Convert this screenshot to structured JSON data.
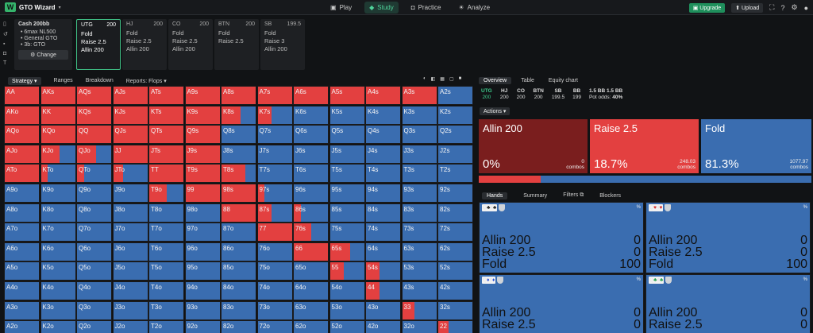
{
  "app": {
    "title": "GTO Wizard"
  },
  "nav": {
    "tabs": [
      {
        "label": "Play"
      },
      {
        "label": "Study"
      },
      {
        "label": "Practice"
      },
      {
        "label": "Analyze"
      }
    ],
    "upgrade": "Upgrade",
    "upload": "Upload"
  },
  "config": {
    "header": "Cash  200bb",
    "items": [
      "6max NL500",
      "General GTO",
      "3b: GTO"
    ],
    "change": "Change"
  },
  "positions": [
    {
      "name": "UTG",
      "stack": "200",
      "actions": [
        "Fold",
        "Raise 2.5",
        "Allin 200"
      ]
    },
    {
      "name": "HJ",
      "stack": "200",
      "actions": [
        "Fold",
        "Raise 2.5",
        "Allin 200"
      ]
    },
    {
      "name": "CO",
      "stack": "200",
      "actions": [
        "Fold",
        "Raise 2.5",
        "Allin 200"
      ]
    },
    {
      "name": "BTN",
      "stack": "200",
      "actions": [
        "Fold",
        "Raise 2.5"
      ]
    },
    {
      "name": "SB",
      "stack": "199.5",
      "actions": [
        "Fold",
        "Raise 3",
        "Allin 200"
      ]
    }
  ],
  "lefttabs": [
    "Strategy",
    "Ranges",
    "Breakdown",
    "Reports: Flops"
  ],
  "matrix": {
    "ranks": [
      "A",
      "K",
      "Q",
      "J",
      "T",
      "9",
      "8",
      "7",
      "6",
      "5",
      "4",
      "3",
      "2"
    ],
    "raise_freq": [
      [
        1,
        1,
        1,
        1,
        1,
        1,
        1,
        1,
        1,
        1,
        1,
        1,
        0
      ],
      [
        1,
        1,
        1,
        1,
        1,
        1,
        0.55,
        0.4,
        0,
        0,
        0,
        0,
        0
      ],
      [
        1,
        1,
        1,
        1,
        1,
        1,
        0,
        0,
        0,
        0,
        0,
        0,
        0
      ],
      [
        1,
        0.55,
        0.55,
        1,
        1,
        1,
        0,
        0,
        0,
        0,
        0,
        0,
        0
      ],
      [
        1,
        0.2,
        0.2,
        0.3,
        1,
        1,
        0.7,
        0,
        0,
        0,
        0,
        0,
        0
      ],
      [
        0,
        0,
        0,
        0,
        0.5,
        1,
        1,
        0.2,
        0,
        0,
        0,
        0,
        0
      ],
      [
        0,
        0,
        0,
        0,
        0,
        0,
        1,
        0.4,
        0.2,
        0,
        0,
        0,
        0
      ],
      [
        0,
        0,
        0,
        0,
        0,
        0,
        0,
        1,
        0.5,
        0,
        0,
        0,
        0
      ],
      [
        0,
        0,
        0,
        0,
        0,
        0,
        0,
        0,
        1,
        0.6,
        0,
        0,
        0
      ],
      [
        0,
        0,
        0,
        0,
        0,
        0,
        0,
        0,
        0,
        0.4,
        0.4,
        0,
        0
      ],
      [
        0,
        0,
        0,
        0,
        0,
        0,
        0,
        0,
        0,
        0,
        0.4,
        0,
        0
      ],
      [
        0,
        0,
        0,
        0,
        0,
        0,
        0,
        0,
        0,
        0,
        0,
        0.35,
        0
      ],
      [
        0,
        0,
        0,
        0,
        0,
        0,
        0,
        0,
        0,
        0,
        0,
        0,
        0.3
      ]
    ]
  },
  "righttabs": [
    "Overview",
    "Table",
    "Equity chart"
  ],
  "seats": [
    {
      "name": "UTG",
      "stack": "200"
    },
    {
      "name": "HJ",
      "stack": "200"
    },
    {
      "name": "CO",
      "stack": "200"
    },
    {
      "name": "BTN",
      "stack": "200"
    },
    {
      "name": "SB",
      "stack": "199.5"
    },
    {
      "name": "BB",
      "stack": "199"
    }
  ],
  "pot": {
    "line1": "1.5 BB  1.5 BB",
    "label": "Pot odds:",
    "odds": "40%"
  },
  "actions_label": "Actions",
  "actionbox": [
    {
      "name": "Allin 200",
      "pct": "0%",
      "combos": "0",
      "combos_label": "combos",
      "color": "#7a1e1e"
    },
    {
      "name": "Raise 2.5",
      "pct": "18.7%",
      "combos": "248.03",
      "combos_label": "combos",
      "color": "#e34040"
    },
    {
      "name": "Fold",
      "pct": "81.3%",
      "combos": "1077.97",
      "combos_label": "combos",
      "color": "#3a6db0"
    }
  ],
  "handtabs": [
    "Hands",
    "Summary",
    "Filters",
    "Blockers"
  ],
  "handcards": [
    {
      "c1": "Q",
      "s1": "♣",
      "k1": "k",
      "c2": "4",
      "s2": "♣",
      "k2": "k",
      "rows": [
        [
          "Allin 200",
          "0"
        ],
        [
          "Raise 2.5",
          "0"
        ],
        [
          "Fold",
          "100"
        ]
      ]
    },
    {
      "c1": "Q",
      "s1": "♥",
      "k1": "r",
      "c2": "4",
      "s2": "♥",
      "k2": "r",
      "rows": [
        [
          "Allin 200",
          "0"
        ],
        [
          "Raise 2.5",
          "0"
        ],
        [
          "Fold",
          "100"
        ]
      ]
    },
    {
      "c1": "Q",
      "s1": "♦",
      "k1": "b",
      "c2": "4",
      "s2": "♦",
      "k2": "b",
      "rows": [
        [
          "Allin 200",
          "0"
        ],
        [
          "Raise 2.5",
          "0"
        ]
      ]
    },
    {
      "c1": "Q",
      "s1": "♣",
      "k1": "g",
      "c2": "4",
      "s2": "♣",
      "k2": "g",
      "rows": [
        [
          "Allin 200",
          "0"
        ],
        [
          "Raise 2.5",
          "0"
        ]
      ]
    }
  ],
  "pct_symbol": "%"
}
